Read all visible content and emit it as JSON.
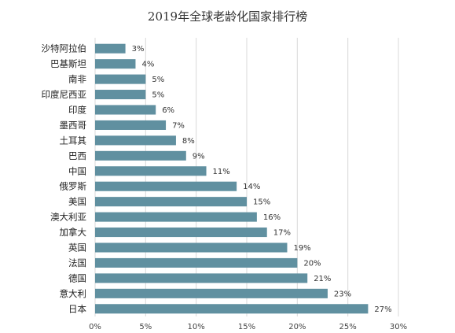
{
  "chart_data": {
    "type": "bar",
    "orientation": "horizontal",
    "title": "2019年全球老龄化国家排行榜",
    "categories": [
      "沙特阿拉伯",
      "巴基斯坦",
      "南非",
      "印度尼西亚",
      "印度",
      "墨西哥",
      "土耳其",
      "巴西",
      "中国",
      "俄罗斯",
      "美国",
      "澳大利亚",
      "加拿大",
      "英国",
      "法国",
      "德国",
      "意大利",
      "日本"
    ],
    "values": [
      3,
      4,
      5,
      5,
      6,
      7,
      8,
      9,
      11,
      14,
      15,
      16,
      17,
      19,
      20,
      21,
      23,
      27
    ],
    "value_labels": [
      "3%",
      "4%",
      "5%",
      "5%",
      "6%",
      "7%",
      "8%",
      "9%",
      "11%",
      "14%",
      "15%",
      "16%",
      "17%",
      "19%",
      "20%",
      "21%",
      "23%",
      "27%"
    ],
    "xticks": [
      0,
      5,
      10,
      15,
      20,
      25,
      30
    ],
    "xtick_labels": [
      "0%",
      "5%",
      "10%",
      "15%",
      "20%",
      "25%",
      "30%"
    ],
    "xlim": [
      0,
      30
    ],
    "grid": true,
    "bar_color": "#6090a0"
  }
}
